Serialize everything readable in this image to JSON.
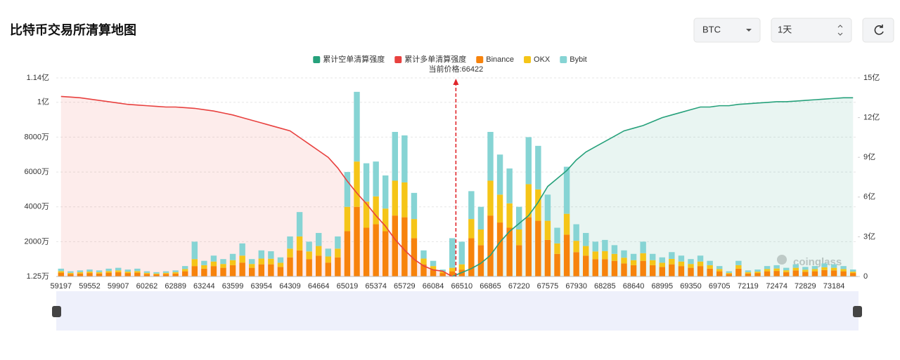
{
  "header": {
    "title": "比特币交易所清算地图",
    "symbol": "BTC",
    "period": "1天"
  },
  "watermark": "coinglass",
  "chart_data": {
    "type": "bar",
    "stacked": true,
    "annotation": {
      "text": "当前价格:66422",
      "value": 66422
    },
    "categories": [
      "59197",
      null,
      null,
      "59552",
      null,
      null,
      "59907",
      null,
      null,
      "60262",
      null,
      null,
      "62889",
      null,
      null,
      "63244",
      null,
      null,
      "63599",
      null,
      null,
      "63954",
      null,
      null,
      "64309",
      null,
      null,
      "64664",
      null,
      null,
      "65019",
      null,
      null,
      "65374",
      null,
      null,
      "65729",
      null,
      null,
      "66084",
      null,
      null,
      "66510",
      null,
      null,
      "66865",
      null,
      null,
      "67220",
      null,
      null,
      "67575",
      null,
      null,
      "67930",
      null,
      null,
      "68285",
      null,
      null,
      "68640",
      null,
      null,
      "68995",
      null,
      null,
      "69350",
      null,
      null,
      "69705",
      null,
      null,
      "72119",
      null,
      null,
      "72474",
      null,
      null,
      "72829",
      null,
      null,
      "73184",
      null,
      null
    ],
    "ylim": [
      1.25,
      11400
    ],
    "yticks": [
      {
        "value": 1.25,
        "label": "1.25万"
      },
      {
        "value": 2000,
        "label": "2000万"
      },
      {
        "value": 4000,
        "label": "4000万"
      },
      {
        "value": 6000,
        "label": "6000万"
      },
      {
        "value": 8000,
        "label": "8000万"
      },
      {
        "value": 10000,
        "label": "1亿"
      },
      {
        "value": 11400,
        "label": "1.14亿"
      }
    ],
    "y2lim": [
      0,
      15
    ],
    "y2ticks": [
      0,
      {
        "value": 3,
        "label": "3亿"
      },
      {
        "value": 6,
        "label": "6亿"
      },
      {
        "value": 9,
        "label": "9亿"
      },
      {
        "value": 12,
        "label": "12亿"
      },
      {
        "value": 15,
        "label": "15亿"
      }
    ],
    "grid": true,
    "series": [
      {
        "name": "累计空单清算强度",
        "color": "#26a17b",
        "type": "line",
        "axis": "y2",
        "values": [
          null,
          null,
          null,
          null,
          null,
          null,
          null,
          null,
          null,
          null,
          null,
          null,
          null,
          null,
          null,
          null,
          null,
          null,
          null,
          null,
          null,
          null,
          null,
          null,
          null,
          null,
          null,
          null,
          null,
          null,
          null,
          null,
          null,
          null,
          null,
          null,
          null,
          null,
          null,
          null,
          null,
          0,
          0.3,
          0.6,
          1.0,
          1.6,
          2.6,
          3.4,
          4.0,
          4.6,
          5.6,
          6.8,
          7.4,
          8.0,
          8.8,
          9.4,
          9.8,
          10.2,
          10.6,
          11.0,
          11.2,
          11.4,
          11.7,
          12.0,
          12.2,
          12.4,
          12.6,
          12.8,
          12.8,
          12.9,
          12.9,
          13.0,
          13.05,
          13.1,
          13.15,
          13.2,
          13.2,
          13.25,
          13.3,
          13.35,
          13.4,
          13.45,
          13.5,
          13.5
        ]
      },
      {
        "name": "累计多单清算强度",
        "color": "#e8413f",
        "type": "line",
        "axis": "y2",
        "values": [
          13.6,
          13.55,
          13.5,
          13.4,
          13.3,
          13.2,
          13.1,
          13.0,
          12.95,
          12.9,
          12.85,
          12.8,
          12.8,
          12.75,
          12.7,
          12.6,
          12.5,
          12.35,
          12.2,
          12.0,
          11.8,
          11.6,
          11.4,
          11.2,
          11.0,
          10.5,
          10.0,
          9.5,
          9.0,
          8.2,
          7.2,
          6.3,
          5.5,
          4.6,
          3.8,
          2.8,
          2.0,
          1.3,
          0.8,
          0.5,
          0.4,
          0,
          null,
          null,
          null,
          null,
          null,
          null,
          null,
          null,
          null,
          null,
          null,
          null,
          null,
          null,
          null,
          null,
          null,
          null,
          null,
          null,
          null,
          null,
          null,
          null,
          null,
          null,
          null,
          null,
          null,
          null,
          null,
          null,
          null,
          null,
          null,
          null,
          null,
          null,
          null,
          null,
          null,
          null
        ]
      },
      {
        "name": "Binance",
        "color": "#f7830c",
        "type": "bar",
        "values": [
          220,
          150,
          170,
          200,
          170,
          220,
          250,
          200,
          220,
          150,
          120,
          150,
          170,
          300,
          600,
          450,
          600,
          500,
          650,
          800,
          500,
          700,
          700,
          550,
          1100,
          1500,
          1000,
          1200,
          800,
          1100,
          2600,
          4000,
          2800,
          3000,
          2600,
          3500,
          3400,
          2200,
          700,
          400,
          200,
          300,
          400,
          2200,
          1800,
          3500,
          3100,
          2800,
          1800,
          3400,
          3200,
          2100,
          1300,
          2400,
          1400,
          1200,
          1000,
          1000,
          900,
          750,
          650,
          900,
          650,
          550,
          700,
          600,
          500,
          600,
          450,
          300,
          150,
          450,
          170,
          200,
          300,
          320,
          250,
          350,
          270,
          300,
          370,
          350,
          300,
          200
        ]
      },
      {
        "name": "OKX",
        "color": "#f5c518",
        "type": "bar",
        "values": [
          90,
          60,
          80,
          80,
          80,
          90,
          100,
          80,
          90,
          60,
          50,
          60,
          80,
          130,
          400,
          200,
          260,
          220,
          290,
          400,
          220,
          330,
          320,
          240,
          500,
          800,
          440,
          550,
          350,
          500,
          1400,
          2600,
          1500,
          1600,
          1300,
          2000,
          2000,
          1100,
          330,
          200,
          80,
          200,
          300,
          1100,
          900,
          2000,
          1600,
          1400,
          900,
          1900,
          1800,
          1100,
          600,
          1200,
          650,
          550,
          440,
          460,
          400,
          330,
          290,
          440,
          290,
          240,
          310,
          260,
          220,
          260,
          200,
          130,
          60,
          200,
          80,
          80,
          130,
          140,
          110,
          150,
          120,
          130,
          160,
          150,
          130,
          80
        ]
      },
      {
        "name": "Bybit",
        "color": "#86d4d4",
        "type": "bar",
        "values": [
          140,
          90,
          100,
          120,
          100,
          140,
          150,
          120,
          140,
          90,
          80,
          90,
          100,
          170,
          1000,
          250,
          340,
          280,
          360,
          700,
          280,
          470,
          430,
          310,
          700,
          1400,
          560,
          750,
          450,
          700,
          2000,
          4000,
          2200,
          2000,
          1900,
          2800,
          2700,
          1500,
          470,
          300,
          120,
          1700,
          1300,
          1600,
          1300,
          2800,
          2300,
          2000,
          1300,
          2700,
          2500,
          1500,
          900,
          2700,
          950,
          750,
          560,
          640,
          500,
          420,
          360,
          660,
          360,
          310,
          390,
          340,
          280,
          340,
          250,
          170,
          90,
          250,
          100,
          120,
          170,
          190,
          140,
          200,
          160,
          170,
          220,
          200,
          170,
          120
        ]
      }
    ]
  }
}
